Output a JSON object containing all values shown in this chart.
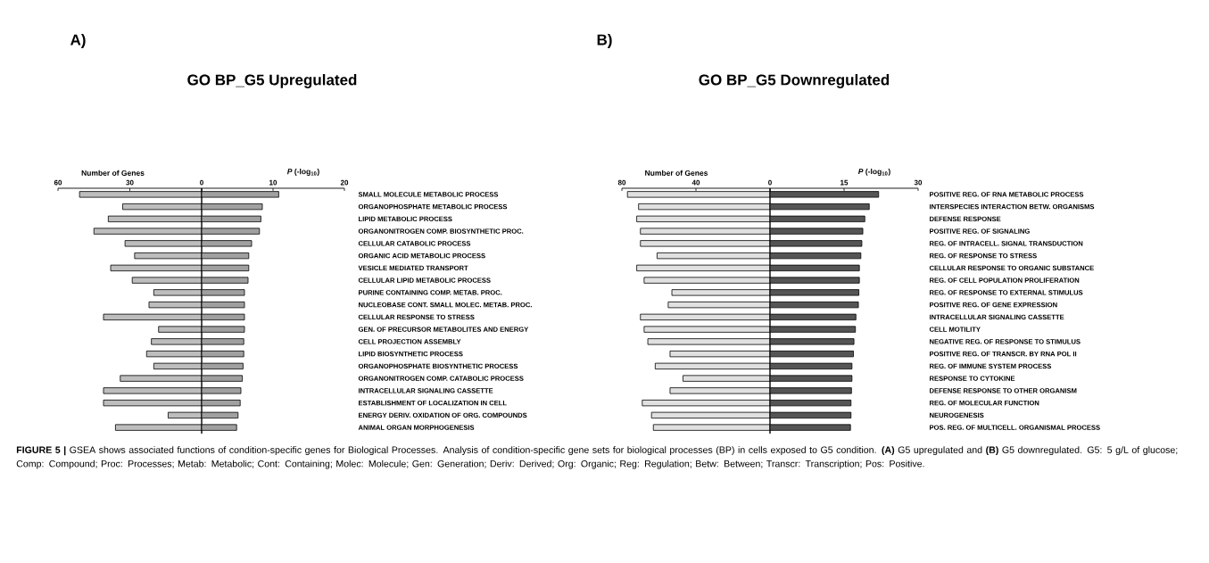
{
  "chart_data": [
    {
      "type": "bar",
      "orientation": "horizontal",
      "annotations": [
        "A)"
      ],
      "xlabel": "Number of Genes",
      "tick_labels": "x",
      "categories": [
        null,
        null,
        null,
        null,
        null,
        null,
        null,
        null,
        null,
        null,
        null,
        null,
        null,
        null,
        null,
        null,
        null,
        null,
        null,
        null
      ],
      "values": [
        51,
        33,
        39,
        45,
        32,
        28,
        38,
        29,
        20,
        22,
        41,
        18,
        21,
        23,
        20,
        34,
        41,
        41,
        14,
        36
      ],
      "color": "#bdbdbd",
      "xlim": [
        60,
        0
      ],
      "xticks": [
        60,
        30
      ]
    },
    {
      "type": "bar",
      "orientation": "horizontal",
      "title": "GO BP_G5 Upregulated",
      "xlabel": "*P* (-log$_{10}$)",
      "categories": [
        "SMALL MOLECULE METABOLIC PROCESS",
        "ORGANOPHOSPHATE METABOLIC PROCESS",
        "LIPID METABOLIC PROCESS",
        "ORGANONITROGEN COMP. BIOSYNTHETIC PROC.",
        "CELLULAR CATABOLIC PROCESS",
        "ORGANIC ACID METABOLIC PROCESS",
        "VESICLE MEDIATED TRANSPORT",
        "CELLULAR LIPID METABOLIC PROCESS",
        "PURINE CONTAINING COMP. METAB. PROC.",
        "NUCLEOBASE CONT. SMALL MOLEC. METAB. PROC.",
        "CELLULAR RESPONSE TO STRESS",
        "GEN. OF PRECURSOR METABOLITES AND ENERGY",
        "CELL PROJECTION ASSEMBLY",
        "LIPID BIOSYNTHETIC PROCESS",
        "ORGANOPHOSPHATE BIOSYNTHETIC PROCESS",
        "ORGANONITROGEN COMP. CATABOLIC PROCESS",
        "INTRACELLULAR SIGNALING CASSETTE",
        "ESTABLISHMENT OF LOCALIZATION IN CELL",
        "ENERGY DERIV. OXIDATION OF ORG. COMPOUNDS",
        "ANIMAL ORGAN MORPHOGENESIS"
      ],
      "values": [
        10.8,
        8.5,
        8.3,
        8.1,
        7.0,
        6.6,
        6.6,
        6.5,
        6.0,
        6.0,
        6.0,
        6.0,
        5.9,
        5.9,
        5.8,
        5.7,
        5.5,
        5.4,
        5.1,
        4.9
      ],
      "color": "#a0a0a0",
      "xlim": [
        0,
        20
      ],
      "xticks": [
        0,
        10,
        20
      ]
    },
    {
      "type": "bar",
      "orientation": "horizontal",
      "annotations": [
        "B)"
      ],
      "xlabel": "Number of Genes",
      "tick_labels": "x",
      "categories": [
        null,
        null,
        null,
        null,
        null,
        null,
        null,
        null,
        null,
        null,
        null,
        null,
        null,
        null,
        null,
        null,
        null,
        null,
        null,
        null
      ],
      "values": [
        77,
        71,
        72,
        70,
        70,
        61,
        72,
        68,
        53,
        55,
        70,
        68,
        66,
        54,
        62,
        47,
        54,
        69,
        64,
        63
      ],
      "color": "#e0e0e0",
      "xlim": [
        80,
        0
      ],
      "xticks": [
        80,
        40
      ]
    },
    {
      "type": "bar",
      "orientation": "horizontal",
      "title": "GO BP_G5 Downregulated",
      "xlabel": "*P* (-log$_{10}$)",
      "categories": [
        "POSITIVE REG. OF RNA METABOLIC PROCESS",
        "INTERSPECIES INTERACTION BETW. ORGANISMS",
        "DEFENSE RESPONSE",
        "POSITIVE REG. OF SIGNALING",
        "REG. OF INTRACELL. SIGNAL TRANSDUCTION",
        "REG. OF RESPONSE TO STRESS",
        "CELLULAR RESPONSE TO ORGANIC SUBSTANCE",
        "REG. OF CELL POPULATION PROLIFERATION",
        "REG. OF RESPONSE TO EXTERNAL STIMULUS",
        "POSITIVE REG. OF GENE EXPRESSION",
        "INTRACELLULAR SIGNALING CASSETTE",
        "CELL MOTILITY",
        "NEGATIVE REG. OF RESPONSE TO STIMULUS",
        "POSITIVE REG. OF TRANSCR. BY RNA POL II",
        "REG. OF IMMUNE SYSTEM PROCESS",
        "RESPONSE TO CYTOKINE",
        "DEFENSE RESPONSE TO OTHER ORGANISM",
        "REG. OF MOLECULAR FUNCTION",
        "NEUROGENESIS",
        "POS. REG. OF MULTICELL. ORGANISMAL PROCESS"
      ],
      "values": [
        22.0,
        20.1,
        19.2,
        18.8,
        18.6,
        18.4,
        18.1,
        18.1,
        18.0,
        17.9,
        17.4,
        17.3,
        17.0,
        16.9,
        16.6,
        16.6,
        16.5,
        16.4,
        16.4,
        16.3
      ],
      "color": "#555555",
      "xlim": [
        0,
        30
      ],
      "xticks": [
        0,
        15,
        30
      ],
      "annotations": [
        "**FIGURE 5 |** GSEA shows associated functions of condition-specific genes for Biological Processes. Analysis of condition-specific gene sets for biological processes (BP) in cells exposed to G5 condition. **(A)** G5 upregulated and **(B)** G5 downregulated. G5: 5 g/L of glucose; Comp: Compound; Proc: Processes; Metab: Metabolic; Cont: Containing; Molec: Molecule; Gen: Generation; Deriv: Derived; Org: Organic; Reg: Regulation; Betw: Between; Transcr: Transcription; Pos: Positive."
      ]
    }
  ]
}
